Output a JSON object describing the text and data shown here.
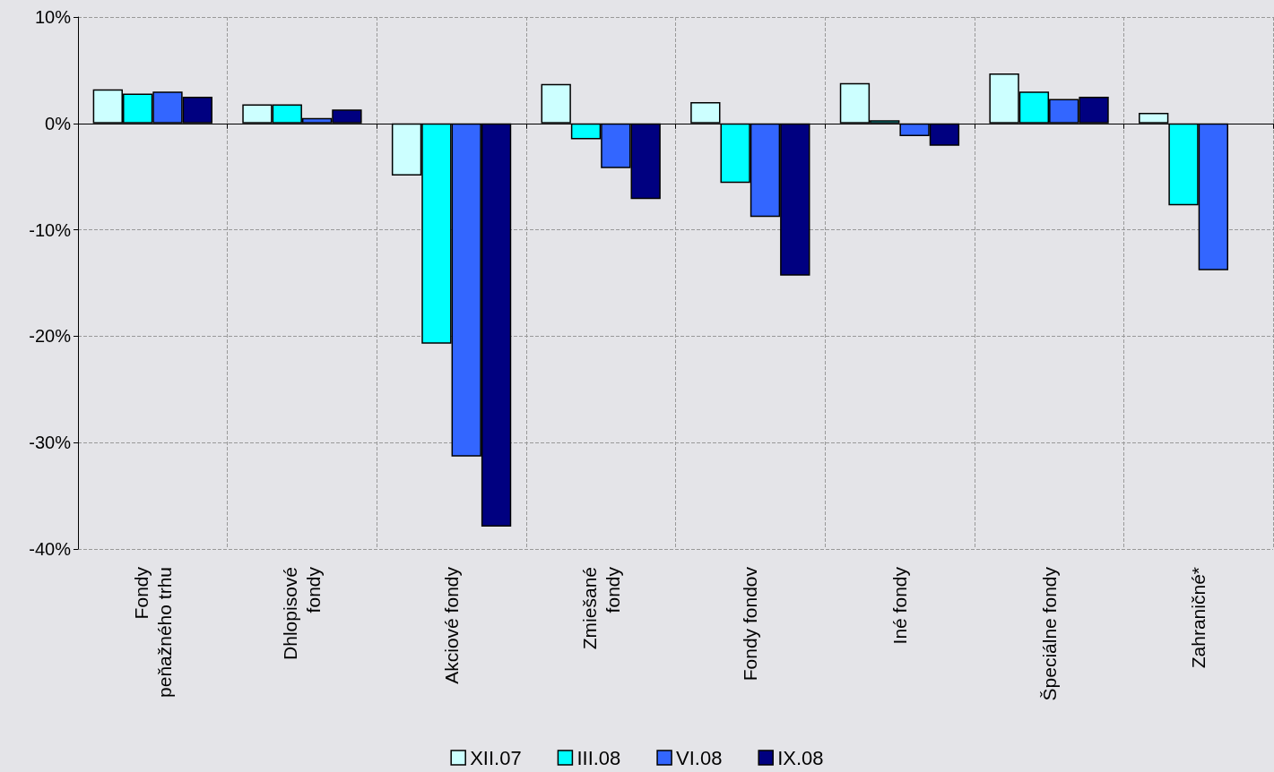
{
  "chart_data": {
    "type": "bar",
    "categories": [
      "Fondy\npeňažného trhu",
      "Dhlopisové\nfondy",
      "Akciové fondy",
      "Zmiešané\nfondy",
      "Fondy fondov",
      "Iné fondy",
      "Špeciálne fondy",
      "Zahraničné*"
    ],
    "series": [
      {
        "name": "XII.07",
        "color": "#ccffff",
        "values": [
          3.2,
          1.8,
          -4.9,
          3.7,
          2.0,
          3.8,
          4.7,
          1.0
        ]
      },
      {
        "name": "III.08",
        "color": "#00ffff",
        "values": [
          2.8,
          1.8,
          -20.7,
          -1.5,
          -5.6,
          0.3,
          3.0,
          -7.7
        ]
      },
      {
        "name": "VI.08",
        "color": "#3366ff",
        "values": [
          3.0,
          0.5,
          -31.3,
          -4.2,
          -8.8,
          -1.2,
          2.3,
          -13.8
        ]
      },
      {
        "name": "IX.08",
        "color": "#000080",
        "values": [
          2.5,
          1.3,
          -37.9,
          -7.1,
          -14.3,
          -2.1,
          2.5,
          null
        ]
      }
    ],
    "ylim": [
      -40,
      10
    ],
    "yticks": [
      {
        "value": -40,
        "label": "-40%"
      },
      {
        "value": -30,
        "label": "-30%"
      },
      {
        "value": -20,
        "label": "-20%"
      },
      {
        "value": -10,
        "label": "-10%"
      },
      {
        "value": 0,
        "label": "0%"
      },
      {
        "value": 10,
        "label": "10%"
      }
    ],
    "grid": true,
    "legend": "bottom"
  }
}
